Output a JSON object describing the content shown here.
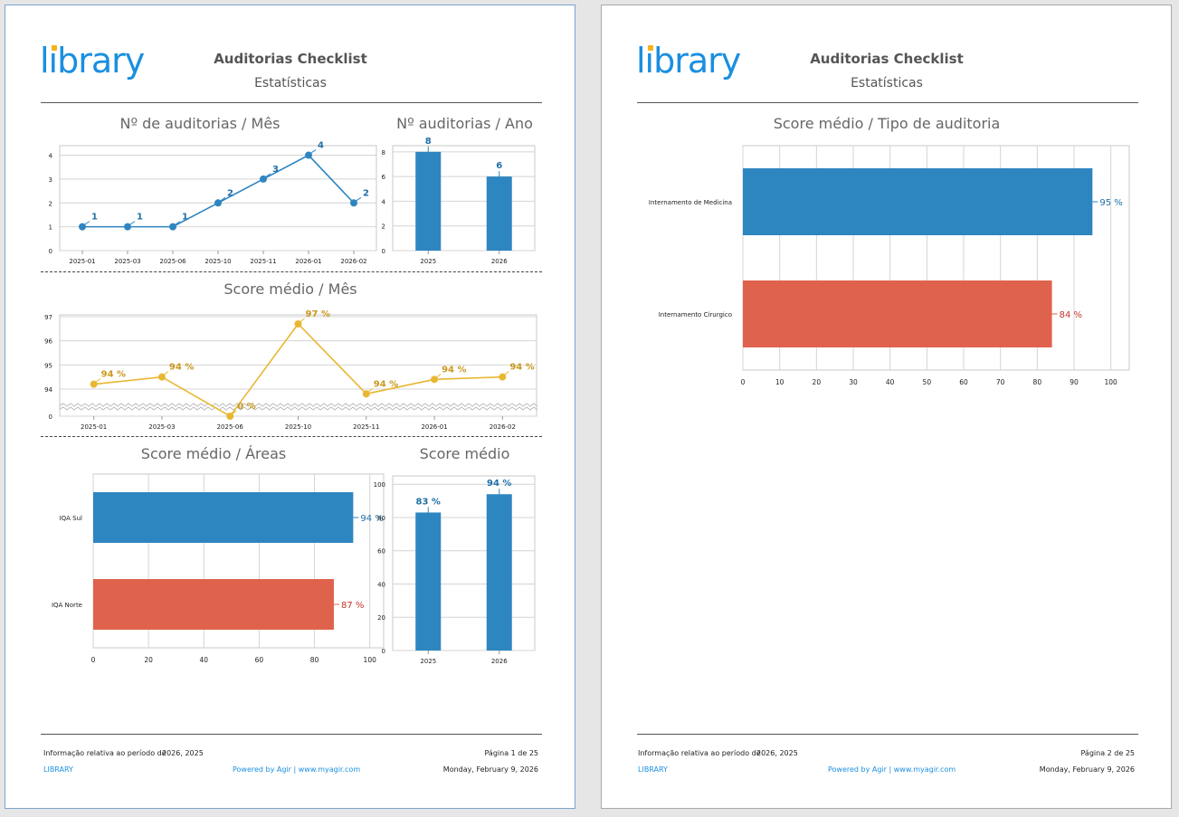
{
  "header": {
    "logo_text": "library",
    "title": "Auditorias Checklist",
    "subtitle": "Estatísticas"
  },
  "footer": {
    "period_label": "Informação relativa ao período de",
    "period_value": "2026, 2025",
    "brand": "LIBRARY",
    "powered": "Powered by Agir | www.myagir.com",
    "date": "Monday, February 9, 2026",
    "page1": "Página 1 de 25",
    "page2": "Página 2 de 25"
  },
  "colors": {
    "blue": "#2e86c1",
    "red": "#df634c",
    "gold": "#e8b732",
    "label_blue": "#1f6fa8",
    "label_red": "#c0392b",
    "label_gold": "#c9991e"
  },
  "chart_data": [
    {
      "id": "audits_month",
      "type": "line",
      "title": "Nº de auditorias / Mês",
      "categories": [
        "2025-01",
        "2025-03",
        "2025-06",
        "2025-10",
        "2025-11",
        "2026-01",
        "2026-02"
      ],
      "values": [
        1,
        1,
        1,
        2,
        3,
        4,
        2
      ],
      "labels": [
        "1",
        "1",
        "1",
        "2",
        "3",
        "4",
        "2"
      ],
      "ylim": [
        0,
        4
      ],
      "yticks": [
        "0",
        "1",
        "2",
        "3",
        "4"
      ]
    },
    {
      "id": "audits_year",
      "type": "bar",
      "title": "Nº auditorias / Ano",
      "categories": [
        "2025",
        "2026"
      ],
      "values": [
        8,
        6
      ],
      "labels": [
        "8",
        "6"
      ],
      "ylim": [
        0,
        8
      ],
      "yticks": [
        "0",
        "2",
        "4",
        "6",
        "8"
      ]
    },
    {
      "id": "score_month",
      "type": "line",
      "title": "Score médio / Mês",
      "categories": [
        "2025-01",
        "2025-03",
        "2025-06",
        "2025-10",
        "2025-11",
        "2026-01",
        "2026-02"
      ],
      "values": [
        94.2,
        94.5,
        0,
        96.7,
        93.8,
        94.4,
        94.5
      ],
      "labels": [
        "94 %",
        "94 %",
        "0 %",
        "97 %",
        "94 %",
        "94 %",
        "94 %"
      ],
      "yticks": [
        "0",
        "94",
        "95",
        "96",
        "97"
      ],
      "axis_break": [
        0,
        93.4
      ]
    },
    {
      "id": "score_areas",
      "type": "bar",
      "orientation": "horizontal",
      "title": "Score médio / Áreas",
      "categories": [
        "IQA Sul",
        "IQA Norte"
      ],
      "values": [
        94,
        87
      ],
      "labels": [
        "94 %",
        "87 %"
      ],
      "xlim": [
        0,
        100
      ],
      "xticks": [
        "0",
        "20",
        "40",
        "60",
        "80",
        "100"
      ]
    },
    {
      "id": "score_year",
      "type": "bar",
      "title": "Score médio",
      "categories": [
        "2025",
        "2026"
      ],
      "values": [
        83,
        94
      ],
      "labels": [
        "83 %",
        "94 %"
      ],
      "ylim": [
        0,
        100
      ],
      "yticks": [
        "0",
        "20",
        "40",
        "60",
        "80",
        "100"
      ]
    },
    {
      "id": "score_type",
      "type": "bar",
      "orientation": "horizontal",
      "title": "Score médio / Tipo de auditoria",
      "categories": [
        "Internamento de Medicina",
        "Internamento Cirurgico"
      ],
      "values": [
        95,
        84
      ],
      "labels": [
        "95 %",
        "84 %"
      ],
      "xlim": [
        0,
        105
      ],
      "xticks": [
        "0",
        "10",
        "20",
        "30",
        "40",
        "50",
        "60",
        "70",
        "80",
        "90",
        "100"
      ]
    }
  ]
}
